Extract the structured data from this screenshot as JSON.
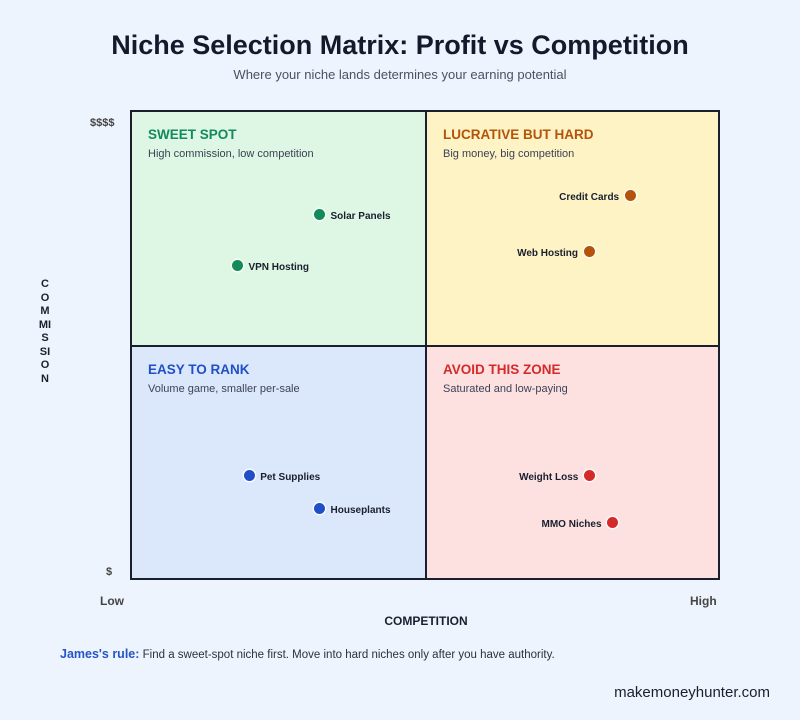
{
  "header": {
    "title": "Niche Selection Matrix: Profit vs Competition",
    "subtitle": "Where your niche lands determines your earning potential"
  },
  "axes": {
    "y_label": "COMMISSION",
    "y_top": "$$$$",
    "y_bottom": "$",
    "x_label": "COMPETITION",
    "x_low": "Low",
    "x_high": "High"
  },
  "quadrants": [
    {
      "title": "SWEET SPOT",
      "desc": "High commission, low competition",
      "color": "#138a5a"
    },
    {
      "title": "LUCRATIVE BUT HARD",
      "desc": "Big money, big competition",
      "color": "#b45309"
    },
    {
      "title": "EASY TO RANK",
      "desc": "Volume game, smaller per-sale",
      "color": "#2050c8"
    },
    {
      "title": "AVOID THIS ZONE",
      "desc": "Saturated and low-paying",
      "color": "#d42a2a"
    }
  ],
  "chart_data": {
    "type": "scatter",
    "x_axis": "COMPETITION",
    "y_axis": "COMMISSION",
    "points": [
      {
        "label": "Solar Panels",
        "competition": 0.32,
        "commission": 0.78,
        "quadrant": "SWEET SPOT"
      },
      {
        "label": "VPN Hosting",
        "competition": 0.18,
        "commission": 0.67,
        "quadrant": "SWEET SPOT"
      },
      {
        "label": "Credit Cards",
        "competition": 0.85,
        "commission": 0.82,
        "quadrant": "LUCRATIVE BUT HARD"
      },
      {
        "label": "Web Hosting",
        "competition": 0.78,
        "commission": 0.7,
        "quadrant": "LUCRATIVE BUT HARD"
      },
      {
        "label": "Pet Supplies",
        "competition": 0.2,
        "commission": 0.22,
        "quadrant": "EASY TO RANK"
      },
      {
        "label": "Houseplants",
        "competition": 0.32,
        "commission": 0.15,
        "quadrant": "EASY TO RANK"
      },
      {
        "label": "Weight Loss",
        "competition": 0.78,
        "commission": 0.22,
        "quadrant": "AVOID THIS ZONE"
      },
      {
        "label": "MMO Niches",
        "competition": 0.82,
        "commission": 0.12,
        "quadrant": "AVOID THIS ZONE"
      }
    ]
  },
  "footer": {
    "rule_label": "James's rule:",
    "rule_text": "Find a sweet-spot niche first. Move into hard niches only after you have authority.",
    "brand": "makemoneyhunter.com"
  }
}
